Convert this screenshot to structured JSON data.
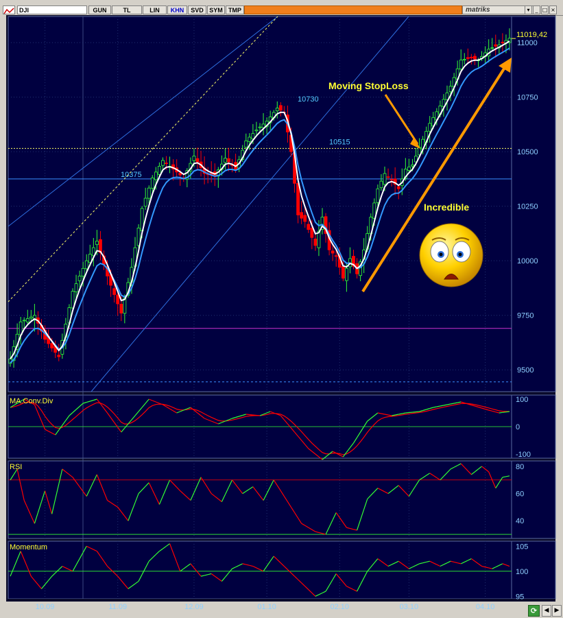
{
  "toolbar": {
    "symbol": "DJI",
    "buttons": [
      "GUN",
      "TL",
      "LIN",
      "KHN",
      "SVD",
      "SYM",
      "TMP"
    ],
    "active": "KHN",
    "brand": "matriks",
    "window_buttons": [
      "▾",
      "_",
      "□",
      "×"
    ]
  },
  "colors": {
    "background": "#000040",
    "axis_text": "#8fd0ff",
    "bull": "#33ff33",
    "bear": "#ff0000",
    "ma_fast": "#ffffff",
    "ma_slow": "#3399ff",
    "annotation_yellow": "#ffff33",
    "annotation_arrow": "#ff9900",
    "threshold_line": "#cc33cc"
  },
  "chart_data": [
    {
      "type": "line",
      "panel": "price",
      "ylim": [
        9400,
        11120
      ],
      "price_ticks": [
        9500,
        9750,
        10000,
        10250,
        10500,
        10750,
        11000
      ],
      "last_value": "11019,42",
      "months": [
        "10.09",
        "11.09",
        "12.09",
        "01.10",
        "02.10",
        "03.10",
        "04.10"
      ],
      "month_index": [
        10,
        31,
        53,
        74,
        95,
        115,
        137
      ],
      "n": 145,
      "anchors": [
        [
          0,
          9550
        ],
        [
          3,
          9720
        ],
        [
          7,
          9750
        ],
        [
          10,
          9640
        ],
        [
          14,
          9560
        ],
        [
          18,
          9860
        ],
        [
          22,
          10000
        ],
        [
          25,
          10090
        ],
        [
          28,
          9930
        ],
        [
          32,
          9760
        ],
        [
          35,
          9970
        ],
        [
          38,
          10240
        ],
        [
          41,
          10380
        ],
        [
          44,
          10460
        ],
        [
          47,
          10420
        ],
        [
          50,
          10380
        ],
        [
          53,
          10480
        ],
        [
          56,
          10400
        ],
        [
          59,
          10390
        ],
        [
          62,
          10470
        ],
        [
          65,
          10420
        ],
        [
          68,
          10550
        ],
        [
          71,
          10600
        ],
        [
          74,
          10640
        ],
        [
          77,
          10700
        ],
        [
          79,
          10680
        ],
        [
          81,
          10500
        ],
        [
          83,
          10210
        ],
        [
          85,
          10180
        ],
        [
          88,
          10070
        ],
        [
          90,
          10200
        ],
        [
          92,
          10050
        ],
        [
          94,
          10020
        ],
        [
          96,
          9920
        ],
        [
          98,
          10010
        ],
        [
          100,
          9940
        ],
        [
          102,
          10050
        ],
        [
          104,
          10200
        ],
        [
          106,
          10330
        ],
        [
          108,
          10400
        ],
        [
          110,
          10370
        ],
        [
          112,
          10330
        ],
        [
          114,
          10420
        ],
        [
          116,
          10440
        ],
        [
          118,
          10520
        ],
        [
          121,
          10630
        ],
        [
          124,
          10710
        ],
        [
          127,
          10800
        ],
        [
          130,
          10920
        ],
        [
          133,
          10930
        ],
        [
          135,
          10920
        ],
        [
          138,
          10970
        ],
        [
          141,
          10990
        ],
        [
          144,
          11020
        ]
      ],
      "levels": [
        {
          "label": "10375",
          "value": 10375
        },
        {
          "label": "10515",
          "value": 10515
        },
        {
          "label": "10730",
          "value": 10730
        }
      ],
      "annotations": [
        "Moving StopLoss",
        "Incredible"
      ]
    },
    {
      "type": "line",
      "panel": "macd",
      "title": "MA.Conv.Div",
      "ylim": [
        -115,
        115
      ],
      "ticks": [
        -100,
        0,
        100
      ],
      "anchors": [
        [
          0,
          70
        ],
        [
          4,
          100
        ],
        [
          7,
          80
        ],
        [
          10,
          -10
        ],
        [
          13,
          -30
        ],
        [
          17,
          40
        ],
        [
          21,
          85
        ],
        [
          25,
          100
        ],
        [
          28,
          50
        ],
        [
          32,
          -20
        ],
        [
          36,
          40
        ],
        [
          40,
          100
        ],
        [
          44,
          80
        ],
        [
          48,
          50
        ],
        [
          52,
          70
        ],
        [
          56,
          30
        ],
        [
          60,
          10
        ],
        [
          64,
          30
        ],
        [
          68,
          45
        ],
        [
          72,
          40
        ],
        [
          75,
          55
        ],
        [
          78,
          40
        ],
        [
          82,
          -20
        ],
        [
          86,
          -80
        ],
        [
          90,
          -120
        ],
        [
          93,
          -90
        ],
        [
          96,
          -110
        ],
        [
          99,
          -60
        ],
        [
          103,
          20
        ],
        [
          106,
          50
        ],
        [
          110,
          40
        ],
        [
          114,
          50
        ],
        [
          118,
          55
        ],
        [
          122,
          70
        ],
        [
          126,
          80
        ],
        [
          130,
          90
        ],
        [
          134,
          75
        ],
        [
          138,
          60
        ],
        [
          141,
          50
        ],
        [
          144,
          55
        ]
      ]
    },
    {
      "type": "line",
      "panel": "rsi",
      "title": "RSI",
      "ylim": [
        27,
        84
      ],
      "ticks": [
        40,
        60,
        80
      ],
      "anchors": [
        [
          0,
          70
        ],
        [
          2,
          78
        ],
        [
          4,
          55
        ],
        [
          7,
          38
        ],
        [
          10,
          62
        ],
        [
          12,
          45
        ],
        [
          15,
          78
        ],
        [
          18,
          72
        ],
        [
          22,
          58
        ],
        [
          25,
          74
        ],
        [
          28,
          55
        ],
        [
          31,
          50
        ],
        [
          34,
          40
        ],
        [
          37,
          60
        ],
        [
          40,
          68
        ],
        [
          43,
          52
        ],
        [
          46,
          70
        ],
        [
          49,
          62
        ],
        [
          52,
          55
        ],
        [
          55,
          72
        ],
        [
          58,
          60
        ],
        [
          61,
          54
        ],
        [
          64,
          70
        ],
        [
          67,
          60
        ],
        [
          70,
          65
        ],
        [
          73,
          55
        ],
        [
          76,
          70
        ],
        [
          78,
          62
        ],
        [
          81,
          50
        ],
        [
          84,
          38
        ],
        [
          88,
          32
        ],
        [
          91,
          30
        ],
        [
          94,
          46
        ],
        [
          97,
          35
        ],
        [
          100,
          33
        ],
        [
          103,
          56
        ],
        [
          106,
          64
        ],
        [
          109,
          60
        ],
        [
          112,
          66
        ],
        [
          115,
          58
        ],
        [
          118,
          70
        ],
        [
          121,
          75
        ],
        [
          124,
          70
        ],
        [
          127,
          78
        ],
        [
          130,
          82
        ],
        [
          133,
          74
        ],
        [
          136,
          80
        ],
        [
          138,
          76
        ],
        [
          140,
          64
        ],
        [
          142,
          72
        ],
        [
          144,
          73
        ]
      ]
    },
    {
      "type": "line",
      "panel": "momentum",
      "title": "Momentum",
      "ylim": [
        94.5,
        106
      ],
      "ticks": [
        95,
        100,
        105
      ],
      "anchors": [
        [
          0,
          99
        ],
        [
          3,
          104
        ],
        [
          6,
          99
        ],
        [
          9,
          96.5
        ],
        [
          12,
          99
        ],
        [
          15,
          101
        ],
        [
          18,
          100
        ],
        [
          22,
          105
        ],
        [
          25,
          104
        ],
        [
          28,
          101
        ],
        [
          31,
          99
        ],
        [
          34,
          96.5
        ],
        [
          37,
          98
        ],
        [
          40,
          102
        ],
        [
          43,
          104
        ],
        [
          46,
          105.5
        ],
        [
          49,
          100
        ],
        [
          52,
          101.5
        ],
        [
          55,
          99
        ],
        [
          58,
          99.5
        ],
        [
          61,
          98
        ],
        [
          64,
          100.5
        ],
        [
          67,
          101.5
        ],
        [
          70,
          101
        ],
        [
          73,
          100
        ],
        [
          76,
          103
        ],
        [
          79,
          101
        ],
        [
          82,
          99
        ],
        [
          85,
          97
        ],
        [
          88,
          95
        ],
        [
          91,
          96
        ],
        [
          94,
          99.5
        ],
        [
          97,
          97
        ],
        [
          100,
          96
        ],
        [
          103,
          100
        ],
        [
          106,
          102.5
        ],
        [
          109,
          101
        ],
        [
          112,
          102
        ],
        [
          115,
          100.5
        ],
        [
          118,
          101.5
        ],
        [
          121,
          102
        ],
        [
          124,
          101
        ],
        [
          127,
          102
        ],
        [
          130,
          101.5
        ],
        [
          133,
          102.5
        ],
        [
          136,
          101
        ],
        [
          139,
          100.5
        ],
        [
          142,
          101.5
        ],
        [
          144,
          101
        ]
      ]
    }
  ]
}
